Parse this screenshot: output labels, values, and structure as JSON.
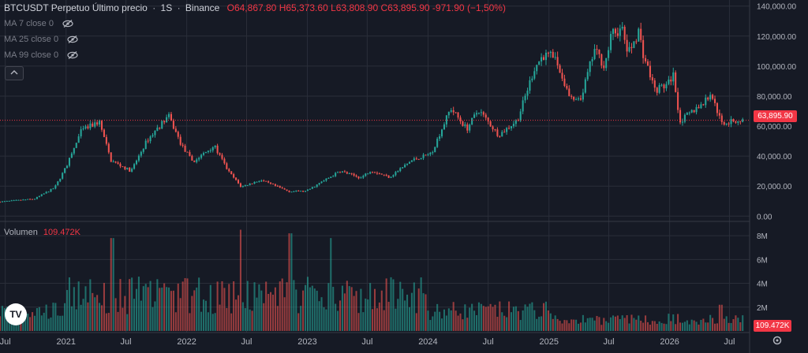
{
  "header": {
    "symbol": "BTCUSDT Perpetuo Último precio",
    "interval": "1S",
    "exchange": "Binance",
    "open": "O64,867.80",
    "high": "H65,373.60",
    "low": "L63,808.90",
    "close": "C63,895.90",
    "change": "-971.90 (−1,50%)"
  },
  "indicators": [
    {
      "label": "MA 7 close 0",
      "icon": "eye-off-icon"
    },
    {
      "label": "MA 25 close 0",
      "icon": "eye-off-icon"
    },
    {
      "label": "MA 99 close 0",
      "icon": "eye-off-icon"
    }
  ],
  "collapse_icon": "chevron-up-icon",
  "volume_pane": {
    "label": "Volumen",
    "value": "109.472K"
  },
  "last_price_tag": "63,895.90",
  "colors": {
    "up": "#26a69a",
    "down": "#ef5350",
    "background": "#161a25",
    "grid": "#2a2e39",
    "price_line": "#f23645"
  },
  "logo_text": "TV",
  "chart_data": {
    "type": "candlestick",
    "price_axis": {
      "ticks": [
        0,
        20000,
        40000,
        60000,
        80000,
        100000,
        120000,
        140000
      ],
      "tick_labels": [
        "0.00",
        "20,000.00",
        "40,000.00",
        "60,000.00",
        "80,000.00",
        "100,000.00",
        "120,000.00",
        "140,000.00"
      ],
      "range": [
        -3000,
        143000
      ]
    },
    "volume_axis": {
      "ticks": [
        2000000,
        4000000,
        6000000,
        8000000
      ],
      "tick_labels": [
        "2M",
        "4M",
        "6M",
        "8M"
      ],
      "range": [
        0,
        9000000
      ]
    },
    "time_axis": {
      "range": [
        "2020-06-15",
        "2026-08-31"
      ],
      "ticks": [
        {
          "date": "2020-07-01",
          "label": "Jul"
        },
        {
          "date": "2021-01-01",
          "label": "2021"
        },
        {
          "date": "2021-07-01",
          "label": "Jul"
        },
        {
          "date": "2022-01-01",
          "label": "2022"
        },
        {
          "date": "2022-07-01",
          "label": "Jul"
        },
        {
          "date": "2023-01-01",
          "label": "2023"
        },
        {
          "date": "2023-07-01",
          "label": "Jul"
        },
        {
          "date": "2024-01-01",
          "label": "2024"
        },
        {
          "date": "2024-07-01",
          "label": "Jul"
        },
        {
          "date": "2025-01-01",
          "label": "2025"
        },
        {
          "date": "2025-07-01",
          "label": "Jul"
        },
        {
          "date": "2026-01-01",
          "label": "2026"
        },
        {
          "date": "2026-07-01",
          "label": "Jul"
        }
      ]
    },
    "close_path": [
      {
        "date": "2020-06-15",
        "close": 9500
      },
      {
        "date": "2020-10-01",
        "close": 11500
      },
      {
        "date": "2020-12-01",
        "close": 19000
      },
      {
        "date": "2021-01-05",
        "close": 33000
      },
      {
        "date": "2021-02-20",
        "close": 57000
      },
      {
        "date": "2021-04-15",
        "close": 63000
      },
      {
        "date": "2021-05-20",
        "close": 37000
      },
      {
        "date": "2021-07-20",
        "close": 30000
      },
      {
        "date": "2021-09-05",
        "close": 50000
      },
      {
        "date": "2021-11-10",
        "close": 67000
      },
      {
        "date": "2021-12-20",
        "close": 47000
      },
      {
        "date": "2022-01-24",
        "close": 36000
      },
      {
        "date": "2022-03-28",
        "close": 47000
      },
      {
        "date": "2022-05-10",
        "close": 30000
      },
      {
        "date": "2022-06-18",
        "close": 19500
      },
      {
        "date": "2022-08-15",
        "close": 24000
      },
      {
        "date": "2022-11-10",
        "close": 16500
      },
      {
        "date": "2022-12-31",
        "close": 16600
      },
      {
        "date": "2023-04-14",
        "close": 30000
      },
      {
        "date": "2023-06-15",
        "close": 25500
      },
      {
        "date": "2023-07-15",
        "close": 30500
      },
      {
        "date": "2023-09-10",
        "close": 26000
      },
      {
        "date": "2023-11-15",
        "close": 37000
      },
      {
        "date": "2024-01-15",
        "close": 42000
      },
      {
        "date": "2024-03-13",
        "close": 72000
      },
      {
        "date": "2024-05-01",
        "close": 58000
      },
      {
        "date": "2024-06-05",
        "close": 71000
      },
      {
        "date": "2024-08-05",
        "close": 54000
      },
      {
        "date": "2024-10-01",
        "close": 64000
      },
      {
        "date": "2024-11-22",
        "close": 99000
      },
      {
        "date": "2024-12-17",
        "close": 107000
      },
      {
        "date": "2025-01-21",
        "close": 106000
      },
      {
        "date": "2025-03-10",
        "close": 78000
      },
      {
        "date": "2025-04-08",
        "close": 76000
      },
      {
        "date": "2025-05-22",
        "close": 111000
      },
      {
        "date": "2025-06-22",
        "close": 100000
      },
      {
        "date": "2025-07-14",
        "close": 122000
      },
      {
        "date": "2025-08-14",
        "close": 124000
      },
      {
        "date": "2025-09-01",
        "close": 108000
      },
      {
        "date": "2025-10-06",
        "close": 125000
      },
      {
        "date": "2025-10-11",
        "close": 112000
      },
      {
        "date": "2025-11-21",
        "close": 84000
      },
      {
        "date": "2025-12-31",
        "close": 88000
      },
      {
        "date": "2026-01-15",
        "close": 95000
      },
      {
        "date": "2026-02-05",
        "close": 63000
      },
      {
        "date": "2026-03-15",
        "close": 70000
      },
      {
        "date": "2026-04-20",
        "close": 76000
      },
      {
        "date": "2026-05-10",
        "close": 82000
      },
      {
        "date": "2026-06-10",
        "close": 62000
      },
      {
        "date": "2026-07-10",
        "close": 63000
      },
      {
        "date": "2026-08-15",
        "close": 63896
      }
    ],
    "volume_peaks": [
      {
        "date": "2021-05-20",
        "volume": 7800000
      },
      {
        "date": "2022-06-15",
        "volume": 8500000
      },
      {
        "date": "2022-11-10",
        "volume": 8200000
      },
      {
        "date": "2023-03-15",
        "volume": 7800000
      },
      {
        "date": "2026-06-05",
        "volume": 2200000
      }
    ],
    "last": {
      "open": 64867.8,
      "high": 65373.6,
      "low": 63808.9,
      "close": 63895.9,
      "volume": 109472
    }
  }
}
